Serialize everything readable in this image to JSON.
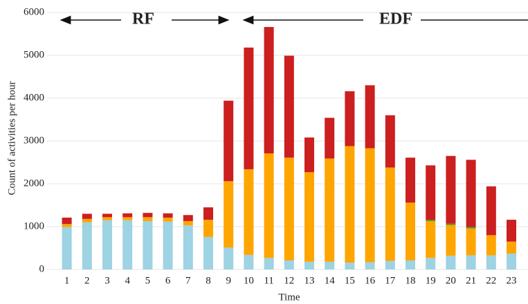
{
  "chart_data": {
    "type": "stacked-bar",
    "y_label": "Count of activities per hour",
    "x_label": "Time",
    "annotations": [
      "RF",
      "EDF"
    ],
    "categories": [
      "1",
      "2",
      "3",
      "4",
      "5",
      "6",
      "7",
      "8",
      "9",
      "10",
      "11",
      "12",
      "13",
      "14",
      "15",
      "16",
      "17",
      "18",
      "19",
      "20",
      "21",
      "22",
      "23"
    ],
    "series": [
      {
        "color": "#9dd3e3",
        "values": [
          990,
          1100,
          1150,
          1150,
          1130,
          1120,
          1030,
          760,
          510,
          340,
          270,
          210,
          180,
          180,
          160,
          170,
          200,
          210,
          270,
          320,
          330,
          330,
          370
        ]
      },
      {
        "color": "#ffa500",
        "values": [
          70,
          80,
          70,
          70,
          90,
          90,
          100,
          400,
          1550,
          2000,
          2440,
          2400,
          2090,
          2410,
          2720,
          2660,
          2180,
          1350,
          860,
          720,
          630,
          470,
          280
        ]
      },
      {
        "color": "#3a9a3a",
        "values": [
          0,
          0,
          0,
          0,
          0,
          0,
          0,
          0,
          0,
          0,
          0,
          0,
          0,
          0,
          0,
          0,
          0,
          0,
          30,
          30,
          30,
          0,
          0
        ]
      },
      {
        "color": "#cc1f1f",
        "values": [
          150,
          120,
          80,
          90,
          100,
          100,
          140,
          290,
          1880,
          2840,
          2950,
          2380,
          810,
          950,
          1280,
          1470,
          1220,
          1050,
          1270,
          1580,
          1570,
          1140,
          510
        ]
      }
    ],
    "ylim": [
      0,
      6000
    ],
    "yticks": [
      0,
      1000,
      2000,
      3000,
      4000,
      5000,
      6000
    ],
    "grid": true
  }
}
